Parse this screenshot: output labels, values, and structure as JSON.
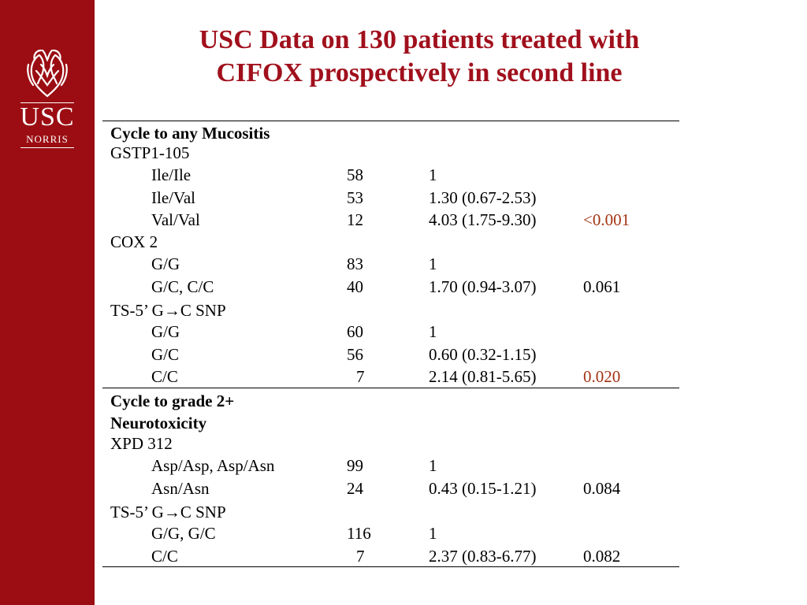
{
  "logo": {
    "text_main": "USC",
    "text_sub": "NORRIS"
  },
  "title": {
    "line1": "USC Data on 130 patients treated with",
    "line2": "CIFOX prospectively in second line"
  },
  "table": {
    "rows": [
      {
        "label": "Cycle to any Mucositis",
        "n": "",
        "hr": "",
        "p": ""
      },
      {
        "label": "GSTP1-105",
        "n": "",
        "hr": "",
        "p": ""
      },
      {
        "label": "Ile/Ile",
        "n": "58",
        "hr": "1",
        "p": ""
      },
      {
        "label": "Ile/Val",
        "n": "53",
        "hr": "1.30 (0.67-2.53)",
        "p": ""
      },
      {
        "label": "Val/Val",
        "n": "12",
        "hr": "4.03 (1.75-9.30)",
        "p": "<0.001"
      },
      {
        "label": "COX 2",
        "n": "",
        "hr": "",
        "p": ""
      },
      {
        "label": "G/G",
        "n": "83",
        "hr": "1",
        "p": ""
      },
      {
        "label": "G/C, C/C",
        "n": "40",
        "hr": "1.70 (0.94-3.07)",
        "p": "0.061"
      },
      {
        "label": "TS-5’ G→C SNP",
        "n": "",
        "hr": "",
        "p": ""
      },
      {
        "label": "G/G",
        "n": "60",
        "hr": "1",
        "p": ""
      },
      {
        "label": "G/C",
        "n": "56",
        "hr": "0.60 (0.32-1.15)",
        "p": ""
      },
      {
        "label": "C/C",
        "n": "7",
        "hr": "2.14 (0.81-5.65)",
        "p": "0.020"
      },
      {
        "label": "Cycle to grade 2+",
        "n": "",
        "hr": "",
        "p": ""
      },
      {
        "label": "Neurotoxicity",
        "n": "",
        "hr": "",
        "p": ""
      },
      {
        "label": "XPD 312",
        "n": "",
        "hr": "",
        "p": ""
      },
      {
        "label": "Asp/Asp, Asp/Asn",
        "n": "99",
        "hr": "1",
        "p": ""
      },
      {
        "label": "Asn/Asn",
        "n": "24",
        "hr": "0.43 (0.15-1.21)",
        "p": "0.084"
      },
      {
        "label": "TS-5’ G→C SNP",
        "n": "",
        "hr": "",
        "p": ""
      },
      {
        "label": "G/G, G/C",
        "n": "116",
        "hr": "1",
        "p": ""
      },
      {
        "label": "C/C",
        "n": "7",
        "hr": "2.37 (0.83-6.77)",
        "p": "0.082"
      }
    ]
  },
  "colors": {
    "sidebar": "#9b0d12",
    "title": "#a0101c",
    "significant_p": "#a33311"
  }
}
